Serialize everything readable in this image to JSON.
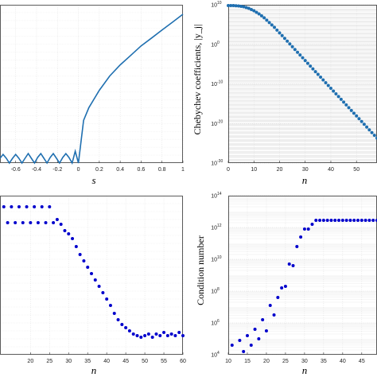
{
  "chart_data": [
    {
      "type": "line",
      "xlabel": "s",
      "ylabel": "",
      "xlim": [
        -0.75,
        1
      ],
      "ylim": [
        0,
        1
      ],
      "x_ticks": [
        "-0.6",
        "-0.4",
        "-0.2",
        "0",
        "0.2",
        "0.4",
        "0.6",
        "0.8",
        "1"
      ],
      "color": "#1f6fb0",
      "grid": true,
      "series": [
        {
          "x": [
            -0.75,
            -0.72,
            -0.69,
            -0.66,
            -0.63,
            -0.6,
            -0.57,
            -0.54,
            -0.51,
            -0.48,
            -0.45,
            -0.42,
            -0.39,
            -0.36,
            -0.33,
            -0.3,
            -0.27,
            -0.24,
            -0.21,
            -0.18,
            -0.15,
            -0.12,
            -0.09,
            -0.06,
            -0.03,
            0.0,
            0.05,
            0.1,
            0.2,
            0.3,
            0.4,
            0.5,
            0.6,
            0.7,
            0.8,
            0.9,
            1.0
          ],
          "y": [
            0.03,
            0.055,
            0.03,
            0.0,
            0.03,
            0.055,
            0.03,
            0.0,
            0.03,
            0.06,
            0.03,
            0.0,
            0.035,
            0.06,
            0.03,
            0.0,
            0.035,
            0.06,
            0.03,
            0.0,
            0.035,
            0.06,
            0.035,
            0.0,
            0.075,
            0.0,
            0.27,
            0.35,
            0.46,
            0.55,
            0.62,
            0.68,
            0.74,
            0.79,
            0.84,
            0.89,
            0.94
          ]
        }
      ]
    },
    {
      "type": "scatter",
      "xlabel": "n",
      "ylabel": "Chebychev coefficients, |y_j|",
      "yscale": "log",
      "xlim": [
        0,
        58
      ],
      "ylim": [
        1e-30,
        10000000000.0
      ],
      "x_ticks": [
        "0",
        "10",
        "20",
        "30",
        "40",
        "50"
      ],
      "y_ticks": [
        "10^10",
        "10^0",
        "10^-10",
        "10^-20",
        "10^-30"
      ],
      "color": "#1f6fb0",
      "grid": true,
      "series": [
        {
          "x": [
            0,
            1,
            2,
            3,
            4,
            5,
            6,
            7,
            8,
            9,
            10,
            11,
            12,
            13,
            14,
            15,
            16,
            17,
            18,
            19,
            20,
            21,
            22,
            23,
            24,
            25,
            26,
            27,
            28,
            29,
            30,
            31,
            32,
            33,
            34,
            35,
            36,
            37,
            38,
            39,
            40,
            41,
            42,
            43,
            44,
            45,
            46,
            47,
            48,
            49,
            50,
            51,
            52,
            53,
            54,
            55,
            56,
            57,
            58
          ],
          "y_log10": [
            9.8,
            9.8,
            9.8,
            9.75,
            9.7,
            9.6,
            9.5,
            9.3,
            9.1,
            8.8,
            8.5,
            8.1,
            7.7,
            7.2,
            6.7,
            6.1,
            5.5,
            4.9,
            4.3,
            3.6,
            2.9,
            2.2,
            1.5,
            0.8,
            0.1,
            -0.6,
            -1.3,
            -2.0,
            -2.7,
            -3.4,
            -4.1,
            -4.8,
            -5.5,
            -6.2,
            -6.9,
            -7.6,
            -8.3,
            -9.0,
            -9.7,
            -10.4,
            -11.1,
            -11.8,
            -12.5,
            -13.2,
            -13.9,
            -14.6,
            -15.3,
            -16.0,
            -16.7,
            -17.4,
            -18.1,
            -18.8,
            -19.5,
            -20.2,
            -20.9,
            -21.6,
            -22.3,
            -23.0,
            -23.7
          ]
        }
      ]
    },
    {
      "type": "scatter",
      "xlabel": "n",
      "ylabel": "",
      "xlim": [
        12,
        60
      ],
      "ylim": [
        0,
        1
      ],
      "x_ticks": [
        "20",
        "25",
        "30",
        "35",
        "40",
        "45",
        "50",
        "55",
        "60"
      ],
      "color": "#0000cc",
      "grid": true,
      "series": [
        {
          "x": [
            13,
            14,
            15,
            16,
            17,
            18,
            19,
            20,
            21,
            22,
            23,
            24,
            25,
            26,
            27,
            28,
            29,
            30,
            31,
            32,
            33,
            34,
            35,
            36,
            37,
            38,
            39,
            40,
            41,
            42,
            43,
            44,
            45,
            46,
            47,
            48,
            49,
            50,
            51,
            52,
            53,
            54,
            55,
            56,
            57,
            58,
            59,
            60
          ],
          "y": [
            0.93,
            0.83,
            0.93,
            0.83,
            0.93,
            0.83,
            0.93,
            0.83,
            0.93,
            0.83,
            0.93,
            0.83,
            0.93,
            0.83,
            0.85,
            0.82,
            0.78,
            0.76,
            0.73,
            0.68,
            0.63,
            0.59,
            0.55,
            0.51,
            0.47,
            0.43,
            0.39,
            0.35,
            0.31,
            0.26,
            0.22,
            0.19,
            0.17,
            0.15,
            0.13,
            0.12,
            0.11,
            0.12,
            0.13,
            0.11,
            0.13,
            0.12,
            0.14,
            0.12,
            0.13,
            0.12,
            0.14,
            0.12
          ]
        }
      ]
    },
    {
      "type": "scatter",
      "xlabel": "n",
      "ylabel": "Condition number",
      "yscale": "log",
      "xlim": [
        10,
        49
      ],
      "ylim": [
        10000.0,
        100000000000000.0
      ],
      "x_ticks": [
        "10",
        "15",
        "20",
        "25",
        "30",
        "35",
        "40",
        "45"
      ],
      "y_ticks": [
        "10^14",
        "10^12",
        "10^10",
        "10^8",
        "10^6",
        "10^4"
      ],
      "color": "#0000cc",
      "grid": true,
      "series": [
        {
          "x": [
            10,
            11,
            12,
            13,
            14,
            15,
            16,
            17,
            18,
            19,
            20,
            21,
            22,
            23,
            24,
            25,
            26,
            27,
            28,
            29,
            30,
            31,
            32,
            33,
            34,
            35,
            36,
            37,
            38,
            39,
            40,
            41,
            42,
            43,
            44,
            45,
            46,
            47,
            48,
            49
          ],
          "y_log10": [
            3.5,
            4.6,
            3.9,
            4.9,
            4.2,
            5.2,
            4.6,
            5.6,
            5.0,
            6.2,
            5.5,
            7.1,
            6.5,
            7.6,
            8.2,
            8.3,
            9.7,
            9.6,
            10.8,
            11.4,
            11.9,
            11.9,
            12.2,
            12.45,
            12.45,
            12.45,
            12.45,
            12.45,
            12.45,
            12.45,
            12.45,
            12.45,
            12.45,
            12.45,
            12.45,
            12.45,
            12.45,
            12.45,
            12.45,
            12.45
          ]
        }
      ]
    }
  ]
}
